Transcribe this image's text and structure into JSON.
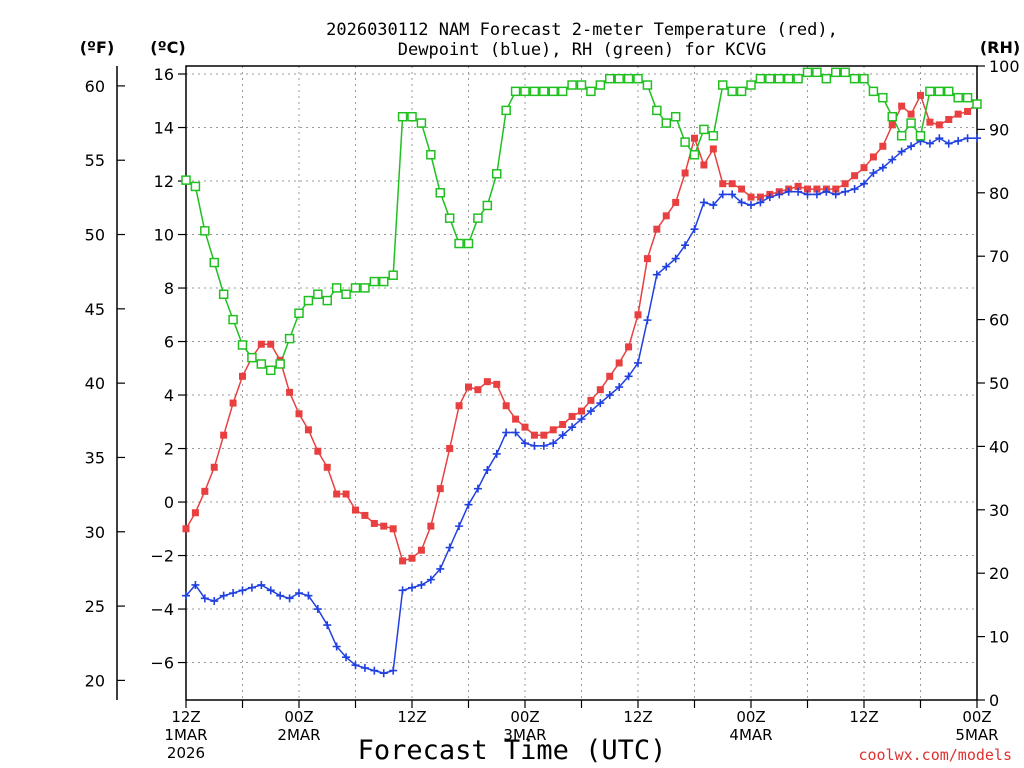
{
  "chart_data": {
    "type": "line",
    "title_line1": "2026030112 NAM Forecast 2-meter Temperature (red),",
    "title_line2": "Dewpoint (blue), RH (green) for KCVG",
    "xlabel": "Forecast Time (UTC)",
    "credit": "coolwx.com/models",
    "unit_f": "(ºF)",
    "unit_c": "(ºC)",
    "unit_rh": "(RH)",
    "c_range": [
      -7.4,
      16.3
    ],
    "rh_range": [
      0,
      100
    ],
    "c_ticks": [
      -6,
      -4,
      -2,
      0,
      2,
      4,
      6,
      8,
      10,
      12,
      14,
      16
    ],
    "f_ticks": [
      20,
      25,
      30,
      35,
      40,
      45,
      50,
      55,
      60
    ],
    "rh_ticks": [
      0,
      10,
      20,
      30,
      40,
      50,
      60,
      70,
      80,
      90,
      100
    ],
    "hours_range": [
      0,
      84
    ],
    "x_ticks": [
      {
        "hour": 0,
        "lines": [
          "12Z",
          "1MAR",
          "2026"
        ]
      },
      {
        "hour": 12,
        "lines": [
          "00Z",
          "2MAR"
        ]
      },
      {
        "hour": 24,
        "lines": [
          "12Z"
        ]
      },
      {
        "hour": 36,
        "lines": [
          "00Z",
          "3MAR"
        ]
      },
      {
        "hour": 48,
        "lines": [
          "12Z"
        ]
      },
      {
        "hour": 60,
        "lines": [
          "00Z",
          "4MAR"
        ]
      },
      {
        "hour": 72,
        "lines": [
          "12Z"
        ]
      },
      {
        "hour": 84,
        "lines": [
          "00Z",
          "5MAR"
        ]
      }
    ],
    "series": [
      {
        "name": "2-meter Temperature",
        "units": "C",
        "color": "#e84040",
        "marker": "filled-square",
        "values": [
          -1.0,
          -0.4,
          0.4,
          1.3,
          2.5,
          3.7,
          4.7,
          5.4,
          5.9,
          5.9,
          5.3,
          4.1,
          3.3,
          2.7,
          1.9,
          1.3,
          0.3,
          0.3,
          -0.3,
          -0.5,
          -0.8,
          -0.9,
          -1.0,
          -2.2,
          -2.1,
          -1.8,
          -0.9,
          0.5,
          2.0,
          3.6,
          4.3,
          4.2,
          4.5,
          4.4,
          3.6,
          3.1,
          2.8,
          2.5,
          2.5,
          2.7,
          2.9,
          3.2,
          3.4,
          3.8,
          4.2,
          4.7,
          5.2,
          5.8,
          7.0,
          9.1,
          10.2,
          10.7,
          11.2,
          12.3,
          13.6,
          12.6,
          13.2,
          11.9,
          11.9,
          11.7,
          11.4,
          11.4,
          11.5,
          11.6,
          11.7,
          11.8,
          11.7,
          11.7,
          11.7,
          11.7,
          11.9,
          12.2,
          12.5,
          12.9,
          13.3,
          14.1,
          14.8,
          14.5,
          15.2,
          14.2,
          14.1,
          14.3,
          14.5,
          14.6,
          14.9
        ]
      },
      {
        "name": "Dewpoint",
        "units": "C",
        "color": "#2040e0",
        "marker": "plus",
        "values": [
          -3.5,
          -3.1,
          -3.6,
          -3.7,
          -3.5,
          -3.4,
          -3.3,
          -3.2,
          -3.1,
          -3.3,
          -3.5,
          -3.6,
          -3.4,
          -3.5,
          -4.0,
          -4.6,
          -5.4,
          -5.8,
          -6.1,
          -6.2,
          -6.3,
          -6.4,
          -6.3,
          -3.3,
          -3.2,
          -3.1,
          -2.9,
          -2.5,
          -1.7,
          -0.9,
          -0.1,
          0.5,
          1.2,
          1.8,
          2.6,
          2.6,
          2.2,
          2.1,
          2.1,
          2.2,
          2.5,
          2.8,
          3.1,
          3.4,
          3.7,
          4.0,
          4.3,
          4.7,
          5.2,
          6.8,
          8.5,
          8.8,
          9.1,
          9.6,
          10.2,
          11.2,
          11.1,
          11.5,
          11.5,
          11.2,
          11.1,
          11.2,
          11.4,
          11.5,
          11.6,
          11.6,
          11.5,
          11.5,
          11.6,
          11.5,
          11.6,
          11.7,
          11.9,
          12.3,
          12.5,
          12.8,
          13.1,
          13.3,
          13.5,
          13.4,
          13.6,
          13.4,
          13.5,
          13.6,
          13.6
        ]
      },
      {
        "name": "Relative Humidity",
        "units": "%",
        "color": "#20c020",
        "marker": "open-square",
        "values": [
          82,
          81,
          74,
          69,
          64,
          60,
          56,
          54,
          53,
          52,
          53,
          57,
          61,
          63,
          64,
          63,
          65,
          64,
          65,
          65,
          66,
          66,
          67,
          92,
          92,
          91,
          86,
          80,
          76,
          72,
          72,
          76,
          78,
          83,
          93,
          96,
          96,
          96,
          96,
          96,
          96,
          97,
          97,
          96,
          97,
          98,
          98,
          98,
          98,
          97,
          93,
          91,
          92,
          88,
          86,
          90,
          89,
          97,
          96,
          96,
          97,
          98,
          98,
          98,
          98,
          98,
          99,
          99,
          98,
          99,
          99,
          98,
          98,
          96,
          95,
          92,
          89,
          91,
          89,
          96,
          96,
          96,
          95,
          95,
          94
        ]
      }
    ]
  }
}
